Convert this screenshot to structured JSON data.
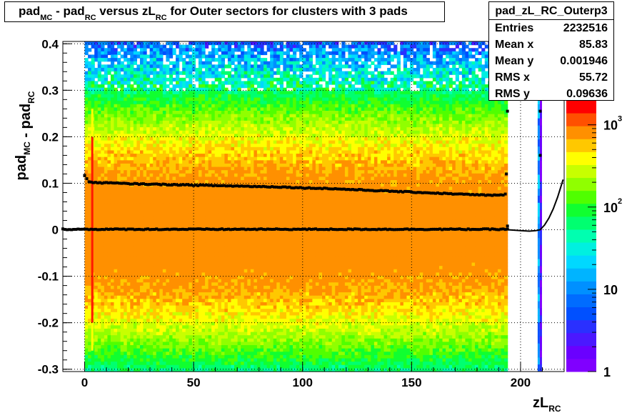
{
  "title": {
    "parts": [
      {
        "t": "pad",
        "s": "MC"
      },
      {
        "t": " - pad",
        "s": "RC"
      },
      {
        "t": " versus zL",
        "s": "RC"
      },
      {
        "t": " for Outer sectors for clusters with 3 pads",
        "s": ""
      }
    ]
  },
  "stats": {
    "name": "pad_zL_RC_Outerp3",
    "entries_label": "Entries",
    "entries_value": "2232516",
    "meanx_label": "Mean x",
    "meanx_value": "85.83",
    "meany_label": "Mean y",
    "meany_value": "0.001946",
    "rmsx_label": "RMS x",
    "rmsx_value": "55.72",
    "rmsy_label": "RMS y",
    "rmsy_value": "0.09636"
  },
  "chart_data": {
    "type": "heatmap",
    "xlabel": "zL",
    "xlabel_sub": "RC",
    "ylabel": "pad",
    "ylabel_parts": [
      {
        "t": "pad",
        "s": "MC"
      },
      {
        "t": " - pad",
        "s": "RC"
      }
    ],
    "xlim": [
      -10,
      220
    ],
    "ylim": [
      -0.305,
      0.405
    ],
    "x_ticks": [
      0,
      50,
      100,
      150,
      200
    ],
    "x_tick_labels": [
      "0",
      "50",
      "100",
      "150",
      "200"
    ],
    "y_ticks": [
      -0.3,
      -0.2,
      -0.1,
      0,
      0.1,
      0.2,
      0.3,
      0.4
    ],
    "y_tick_labels": [
      "-0.3",
      "-0.2",
      "-0.1",
      "0",
      "0.1",
      "0.2",
      "0.3",
      "0.4"
    ],
    "grid": true,
    "z_scale": "log",
    "z_range": [
      1,
      2000
    ],
    "z_tick_labels": [
      {
        "value": 1,
        "base": "1",
        "exp": ""
      },
      {
        "value": 10,
        "base": "10",
        "exp": ""
      },
      {
        "value": 100,
        "base": "10",
        "exp": "2"
      },
      {
        "value": 1000,
        "base": "10",
        "exp": "3"
      }
    ],
    "palette": [
      "#8000ff",
      "#6a00ff",
      "#4b18ff",
      "#2a30ff",
      "#0050ff",
      "#006cff",
      "#0090ff",
      "#00b4ff",
      "#00d8ff",
      "#00f0e0",
      "#00ffb0",
      "#00ff70",
      "#10ff30",
      "#50ff00",
      "#90ff00",
      "#c8ff00",
      "#ffff00",
      "#ffc800",
      "#ff9000",
      "#ff5000",
      "#ff0000"
    ],
    "density": {
      "x_range": [
        0,
        194
      ],
      "y_range": [
        -0.305,
        0.405
      ],
      "peak": 1500,
      "y_sigma": 0.12,
      "extra_columns": [
        {
          "x": 208.5,
          "y_range": [
            -0.305,
            0.3
          ],
          "level": 2
        },
        {
          "x": 209.5,
          "y_range": [
            -0.305,
            0.3
          ],
          "level": 0
        }
      ],
      "hot_column": {
        "x": 3.5,
        "y_range": [
          -0.2,
          0.2
        ]
      }
    },
    "profiles": [
      {
        "name": "upper",
        "x": [
          0,
          2,
          5,
          10,
          20,
          30,
          40,
          50,
          60,
          70,
          80,
          90,
          100,
          110,
          120,
          130,
          140,
          150,
          160,
          170,
          180,
          190,
          193
        ],
        "y": [
          0.117,
          0.103,
          0.101,
          0.101,
          0.099,
          0.098,
          0.097,
          0.096,
          0.095,
          0.094,
          0.093,
          0.092,
          0.09,
          0.089,
          0.087,
          0.085,
          0.083,
          0.081,
          0.079,
          0.077,
          0.075,
          0.074,
          0.076
        ]
      },
      {
        "name": "middle",
        "x": [
          -10,
          0,
          20,
          40,
          60,
          80,
          100,
          120,
          140,
          160,
          180,
          194
        ],
        "y": [
          0.001,
          0.001,
          0.001,
          0.001,
          0.001,
          0.001,
          0.001,
          0.001,
          0.001,
          0.001,
          0.001,
          0.001
        ]
      }
    ],
    "outliers": [
      {
        "x": 0,
        "y": 0.117
      },
      {
        "x": 193.5,
        "y": 0.12
      },
      {
        "x": 194,
        "y": 0.255
      },
      {
        "x": 209,
        "y": 0.16
      },
      {
        "x": 209,
        "y": 0.255
      },
      {
        "x": 194,
        "y": 0.008
      }
    ],
    "fit_curve": {
      "x": [
        194,
        200,
        204,
        207,
        209,
        211,
        213,
        215,
        217,
        218,
        219.5
      ],
      "y": [
        0.0,
        -0.002,
        -0.003,
        -0.002,
        0.0,
        0.01,
        0.025,
        0.045,
        0.07,
        0.085,
        0.108
      ]
    }
  }
}
